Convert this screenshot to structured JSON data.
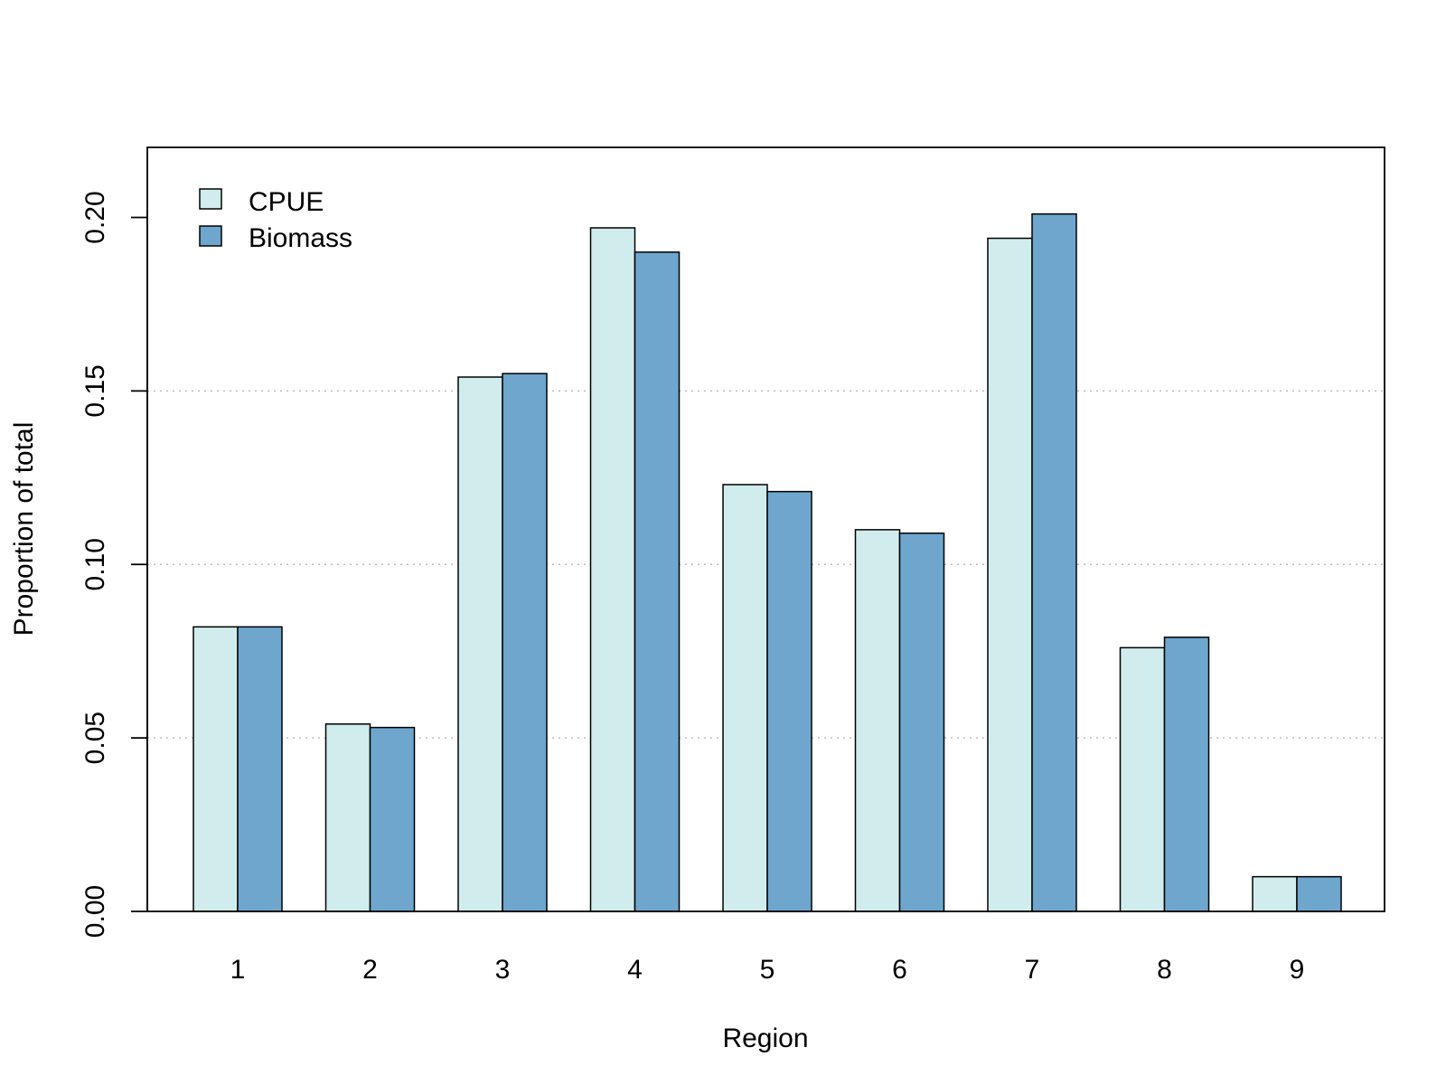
{
  "chart_data": {
    "type": "bar",
    "categories": [
      "1",
      "2",
      "3",
      "4",
      "5",
      "6",
      "7",
      "8",
      "9"
    ],
    "series": [
      {
        "name": "CPUE",
        "values": [
          0.082,
          0.054,
          0.154,
          0.197,
          0.123,
          0.11,
          0.194,
          0.076,
          0.01
        ],
        "color": "#d1ecec"
      },
      {
        "name": "Biomass",
        "values": [
          0.082,
          0.053,
          0.155,
          0.19,
          0.121,
          0.109,
          0.201,
          0.079,
          0.01
        ],
        "color": "#6ea6cd"
      }
    ],
    "xlabel": "Region",
    "ylabel": "Proportion of total",
    "ylim": [
      0,
      0.22
    ],
    "yticks": [
      0.0,
      0.05,
      0.1,
      0.15,
      0.2
    ],
    "ytick_labels": [
      "0.00",
      "0.05",
      "0.10",
      "0.15",
      "0.20"
    ],
    "grid": "horizontal dotted at 0.05, 0.10, 0.15",
    "legend_position": "top-left"
  }
}
